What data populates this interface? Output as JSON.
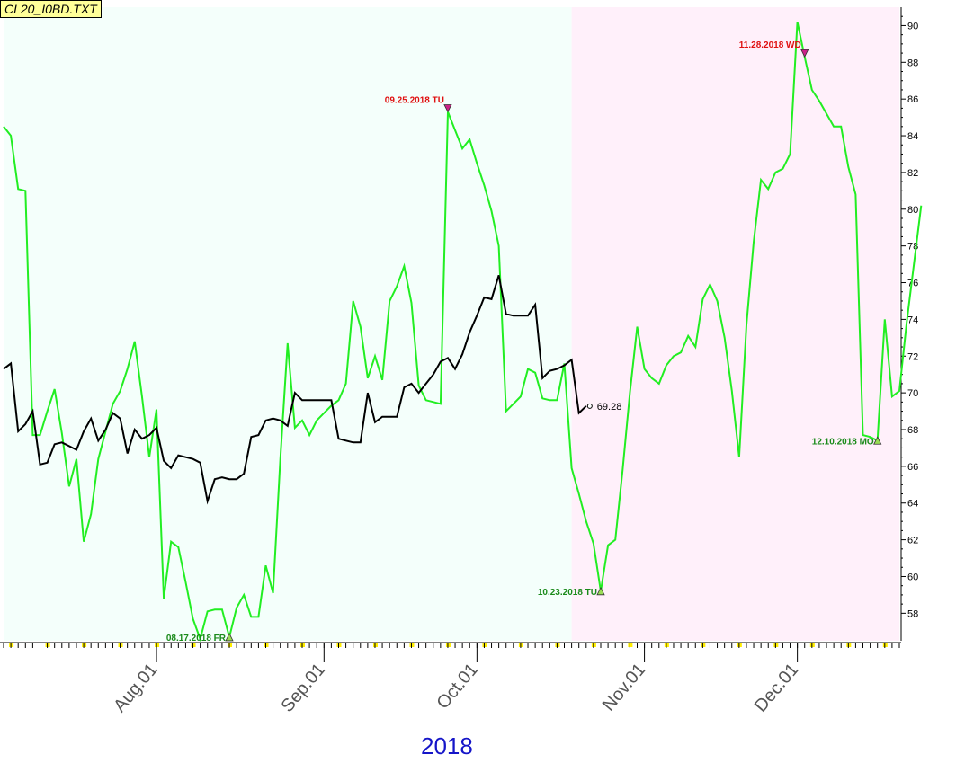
{
  "window": {
    "file_title": "CL20_I0BD.TXT",
    "year_label": "2018"
  },
  "chart_data": {
    "type": "line",
    "ylim": [
      56.5,
      91
    ],
    "y_ticks": [
      58,
      60,
      62,
      64,
      66,
      68,
      70,
      72,
      74,
      76,
      78,
      80,
      82,
      84,
      86,
      88,
      90
    ],
    "x_tick_labels": [
      {
        "label": "Aug.01",
        "index": 21
      },
      {
        "label": "Sep.01",
        "index": 44
      },
      {
        "label": "Oct.01",
        "index": 65
      },
      {
        "label": "Nov.01",
        "index": 88
      },
      {
        "label": "Dec.01",
        "index": 109
      }
    ],
    "background_regions": [
      {
        "from": 0,
        "to": 78,
        "color": "#f4fffb"
      },
      {
        "from": 78,
        "to": 123,
        "color": "#fff0fa"
      }
    ],
    "series": [
      {
        "color": "#22ee22",
        "values": [
          84.5,
          84.0,
          81.1,
          81.0,
          67.7,
          67.7,
          69.0,
          70.2,
          67.8,
          64.9,
          66.4,
          61.9,
          63.4,
          66.4,
          67.9,
          69.4,
          70.1,
          71.3,
          72.8,
          69.8,
          66.5,
          69.1,
          58.8,
          61.9,
          61.6,
          59.7,
          57.7,
          56.6,
          58.1,
          58.2,
          58.2,
          56.7,
          58.3,
          59.0,
          57.8,
          57.8,
          60.6,
          59.1,
          66.4,
          72.7,
          68.1,
          68.5,
          67.7,
          68.5,
          68.9,
          69.3,
          69.6,
          70.5,
          75.0,
          73.6,
          70.8,
          72.0,
          70.7,
          75.0,
          75.8,
          76.9,
          74.9,
          70.4,
          69.6,
          69.5,
          69.4,
          85.3,
          84.3,
          83.3,
          83.8,
          82.5,
          81.3,
          79.9,
          78.0,
          69.0,
          69.4,
          69.8,
          71.3,
          71.1,
          69.7,
          69.6,
          69.6,
          71.6,
          65.9,
          64.5,
          63.0,
          61.8,
          59.2,
          61.7,
          62.0,
          65.8,
          70.0,
          73.6,
          71.3,
          70.8,
          70.5,
          71.5,
          72.0,
          72.2,
          73.1,
          72.5,
          75.1,
          75.9,
          75.0,
          73.0,
          70.1,
          66.5,
          73.7,
          78.2,
          81.6,
          81.1,
          82.0,
          82.2,
          83.0,
          90.2,
          88.3,
          86.5,
          85.9,
          85.2,
          84.5,
          84.5,
          82.3,
          80.8,
          67.7,
          67.6,
          67.4,
          74.0,
          69.8,
          70.1,
          73.8,
          77.0,
          80.2
        ]
      },
      {
        "color": "#000000",
        "last_label": "69.28",
        "values": [
          71.3,
          71.6,
          67.9,
          68.3,
          69.0,
          66.1,
          66.2,
          67.2,
          67.3,
          67.1,
          66.9,
          67.9,
          68.6,
          67.4,
          68.0,
          68.9,
          68.6,
          66.7,
          68.0,
          67.5,
          67.7,
          68.1,
          66.3,
          65.9,
          66.6,
          66.5,
          66.4,
          66.2,
          64.1,
          65.3,
          65.4,
          65.3,
          65.3,
          65.6,
          67.6,
          67.7,
          68.5,
          68.6,
          68.5,
          68.2,
          70.0,
          69.6,
          69.6,
          69.6,
          69.6,
          69.6,
          67.5,
          67.4,
          67.3,
          67.3,
          70.0,
          68.4,
          68.7,
          68.7,
          68.7,
          70.3,
          70.5,
          70.0,
          70.5,
          71.0,
          71.7,
          71.9,
          71.3,
          72.1,
          73.3,
          74.2,
          75.2,
          75.1,
          76.4,
          74.3,
          74.2,
          74.2,
          74.2,
          74.8,
          70.8,
          71.2,
          71.3,
          71.5,
          71.8,
          68.9,
          69.28
        ]
      }
    ],
    "annotations": [
      {
        "text": "08.17.2018 FR",
        "series": 0,
        "index": 31,
        "kind": "low",
        "color": "#1a8a1a"
      },
      {
        "text": "09.25.2018 TU",
        "series": 0,
        "index": 61,
        "kind": "high",
        "color": "#e01010"
      },
      {
        "text": "10.23.2018 TU",
        "series": 0,
        "index": 82,
        "kind": "low",
        "color": "#1a8a1a"
      },
      {
        "text": "11.28.2018 WD",
        "series": 0,
        "index": 110,
        "kind": "high",
        "color": "#e01010"
      },
      {
        "text": "12.10.2018 MO",
        "series": 0,
        "index": 120,
        "kind": "low",
        "color": "#1a8a1a"
      }
    ]
  }
}
